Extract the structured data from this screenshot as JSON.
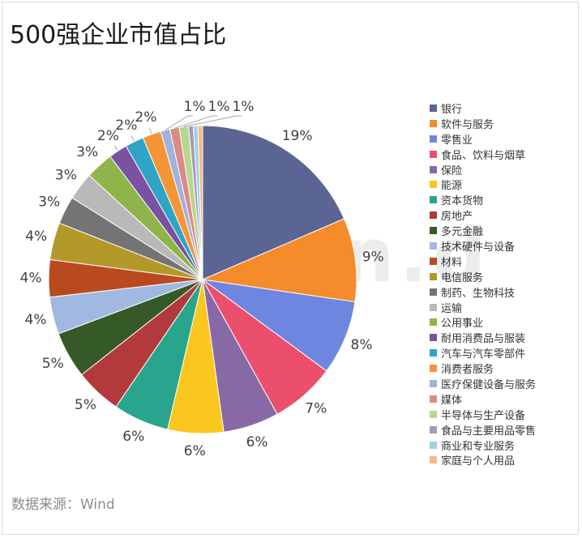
{
  "chart_data": {
    "type": "pie",
    "title": "500强企业市值占比",
    "source": "数据来源：Wind",
    "watermark": "Win.d",
    "legend_position": "right",
    "slices": [
      {
        "name": "银行",
        "value": 19,
        "label": "19%",
        "color": "#5b6593"
      },
      {
        "name": "软件与服务",
        "value": 9,
        "label": "9%",
        "color": "#f58b2b"
      },
      {
        "name": "零售业",
        "value": 8,
        "label": "8%",
        "color": "#6f86e0"
      },
      {
        "name": "食品、饮料与烟草",
        "value": 7,
        "label": "7%",
        "color": "#ec4f6c"
      },
      {
        "name": "保险",
        "value": 6,
        "label": "6%",
        "color": "#8769a6"
      },
      {
        "name": "能源",
        "value": 6,
        "label": "6%",
        "color": "#fbc71e"
      },
      {
        "name": "资本货物",
        "value": 6,
        "label": "6%",
        "color": "#2aa58d"
      },
      {
        "name": "房地产",
        "value": 5,
        "label": "5%",
        "color": "#b33a3c"
      },
      {
        "name": "多元金融",
        "value": 5,
        "label": "5%",
        "color": "#365a27"
      },
      {
        "name": "技术硬件与设备",
        "value": 4,
        "label": "4%",
        "color": "#a1b9e0"
      },
      {
        "name": "材料",
        "value": 4,
        "label": "4%",
        "color": "#b94a1f"
      },
      {
        "name": "电信服务",
        "value": 4,
        "label": "4%",
        "color": "#b3982a"
      },
      {
        "name": "制药、生物科技",
        "value": 3,
        "label": "3%",
        "color": "#747474"
      },
      {
        "name": "运输",
        "value": 3,
        "label": "3%",
        "color": "#b9b9b9"
      },
      {
        "name": "公用事业",
        "value": 3,
        "label": "3%",
        "color": "#8fb54a"
      },
      {
        "name": "耐用消费品与服装",
        "value": 2,
        "label": "2%",
        "color": "#7b51a2"
      },
      {
        "name": "汽车与汽车零部件",
        "value": 2,
        "label": "2%",
        "color": "#2fa4c4"
      },
      {
        "name": "消费者服务",
        "value": 2,
        "label": "2%",
        "color": "#f59537"
      },
      {
        "name": "医疗保健设备与服务",
        "value": 1,
        "label": "1%",
        "color": "#9eb4dc"
      },
      {
        "name": "媒体",
        "value": 1,
        "label": "1%",
        "color": "#db8a86"
      },
      {
        "name": "半导体与生产设备",
        "value": 1,
        "label": "1%",
        "color": "#b9d68e"
      },
      {
        "name": "食品与主要用品零售",
        "value": 0.5,
        "label": "",
        "color": "#a499bd"
      },
      {
        "name": "商业和专业服务",
        "value": 0.5,
        "label": "",
        "color": "#9fd3e1"
      },
      {
        "name": "家庭与个人用品",
        "value": 0.5,
        "label": "",
        "color": "#f7b883"
      }
    ]
  }
}
